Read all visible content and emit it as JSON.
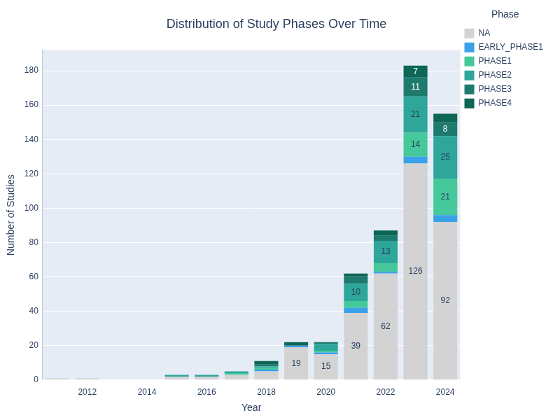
{
  "chart_data": {
    "type": "bar",
    "title": "Distribution of Study Phases Over Time",
    "x_label": "Year",
    "y_label": "Number of Studies",
    "legend_title": "Phase",
    "legend": "top right",
    "stacked": true,
    "data_labels": true,
    "grid": true,
    "categories": [
      null,
      "2012",
      null,
      "2014",
      null,
      "2016",
      null,
      "2018",
      null,
      "2020",
      null,
      "2022",
      null,
      "2024"
    ],
    "ylim": [
      0,
      192
    ],
    "yticks": [
      0,
      20,
      40,
      60,
      80,
      100,
      120,
      140,
      160,
      180
    ],
    "series": [
      {
        "name": "NA",
        "color": "#d3d3d3",
        "values": [
          1,
          1,
          0,
          0,
          2,
          2,
          3,
          5,
          19,
          15,
          39,
          62,
          126,
          92
        ]
      },
      {
        "name": "EARLY_PHASE1",
        "color": "#3aa0e8",
        "values": [
          0,
          0,
          0,
          0,
          0,
          0,
          0,
          1,
          1,
          1,
          3,
          1,
          4,
          4
        ]
      },
      {
        "name": "PHASE1",
        "color": "#45c89a",
        "values": [
          0,
          0,
          0,
          0,
          0,
          0,
          1,
          1,
          0,
          1,
          4,
          5,
          14,
          21
        ]
      },
      {
        "name": "PHASE2",
        "color": "#2ea69a",
        "values": [
          0,
          0,
          0,
          0,
          1,
          1,
          1,
          1,
          0,
          4,
          10,
          13,
          21,
          25
        ]
      },
      {
        "name": "PHASE3",
        "color": "#1e7a6e",
        "values": [
          0,
          0,
          0,
          0,
          0,
          0,
          0,
          1,
          0,
          1,
          4,
          3,
          11,
          8
        ]
      },
      {
        "name": "PHASE4",
        "color": "#0e6655",
        "values": [
          0,
          0,
          0,
          0,
          0,
          0,
          0,
          2,
          2,
          0,
          2,
          3,
          7,
          5
        ]
      }
    ]
  }
}
